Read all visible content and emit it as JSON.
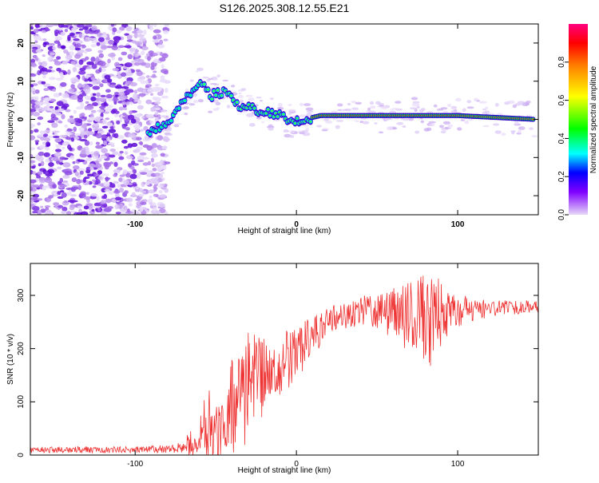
{
  "chart_data": [
    {
      "type": "heatmap",
      "title": "S126.2025.308.12.55.E21",
      "xlabel": "Height of straight line (km)",
      "ylabel": "Frequency (Hz)",
      "xlim": [
        -165,
        150
      ],
      "ylim": [
        -25,
        25
      ],
      "x_ticks": [
        {
          "value": -100,
          "label": "-100"
        },
        {
          "value": 0,
          "label": "0"
        },
        {
          "value": 100,
          "label": "100"
        }
      ],
      "y_ticks": [
        {
          "value": -20,
          "label": "-20"
        },
        {
          "value": -10,
          "label": "-10"
        },
        {
          "value": 0,
          "label": "0"
        },
        {
          "value": 10,
          "label": "10"
        },
        {
          "value": 20,
          "label": "20"
        }
      ],
      "ridge": [
        {
          "x": -90,
          "y": -3
        },
        {
          "x": -80,
          "y": -1
        },
        {
          "x": -70,
          "y": 5
        },
        {
          "x": -63,
          "y": 8
        },
        {
          "x": -57,
          "y": 10
        },
        {
          "x": -54,
          "y": 6
        },
        {
          "x": -48,
          "y": 7
        },
        {
          "x": -42,
          "y": 7
        },
        {
          "x": -38,
          "y": 4
        },
        {
          "x": -30,
          "y": 3
        },
        {
          "x": -20,
          "y": 2
        },
        {
          "x": -10,
          "y": 1
        },
        {
          "x": -3,
          "y": -1
        },
        {
          "x": 5,
          "y": 0
        },
        {
          "x": 15,
          "y": 1
        },
        {
          "x": 60,
          "y": 1
        },
        {
          "x": 100,
          "y": 1
        },
        {
          "x": 148,
          "y": 0
        }
      ],
      "colorbar": {
        "label": "Normalized spectral amplitude",
        "range": [
          0,
          1
        ],
        "ticks": [
          {
            "value": 0.0,
            "label": "0.0"
          },
          {
            "value": 0.2,
            "label": "0.2"
          },
          {
            "value": 0.4,
            "label": "0.4"
          },
          {
            "value": 0.6,
            "label": "0.6"
          },
          {
            "value": 0.8,
            "label": "0.8"
          }
        ]
      }
    },
    {
      "type": "line",
      "xlabel": "Height of straight line (km)",
      "ylabel": "SNR (10 * v/v)",
      "xlim": [
        -165,
        150
      ],
      "ylim": [
        0,
        360
      ],
      "color": "#ee3333",
      "x_ticks": [
        {
          "value": -100,
          "label": "-100"
        },
        {
          "value": 0,
          "label": "0"
        },
        {
          "value": 100,
          "label": "100"
        }
      ],
      "y_ticks": [
        {
          "value": 0,
          "label": "0"
        },
        {
          "value": 100,
          "label": "100"
        },
        {
          "value": 200,
          "label": "200"
        },
        {
          "value": 300,
          "label": "300"
        }
      ],
      "envelope": [
        {
          "x": -165,
          "base": 10,
          "amp": 6
        },
        {
          "x": -100,
          "base": 10,
          "amp": 6
        },
        {
          "x": -75,
          "base": 12,
          "amp": 8
        },
        {
          "x": -62,
          "base": 25,
          "amp": 30
        },
        {
          "x": -55,
          "base": 60,
          "amp": 70
        },
        {
          "x": -45,
          "base": 40,
          "amp": 50
        },
        {
          "x": -40,
          "base": 90,
          "amp": 90
        },
        {
          "x": -30,
          "base": 120,
          "amp": 110
        },
        {
          "x": -20,
          "base": 150,
          "amp": 70
        },
        {
          "x": -5,
          "base": 180,
          "amp": 55
        },
        {
          "x": 10,
          "base": 220,
          "amp": 40
        },
        {
          "x": 25,
          "base": 260,
          "amp": 25
        },
        {
          "x": 40,
          "base": 270,
          "amp": 30
        },
        {
          "x": 60,
          "base": 265,
          "amp": 50
        },
        {
          "x": 75,
          "base": 255,
          "amp": 80
        },
        {
          "x": 85,
          "base": 255,
          "amp": 95
        },
        {
          "x": 95,
          "base": 270,
          "amp": 35
        },
        {
          "x": 120,
          "base": 275,
          "amp": 15
        },
        {
          "x": 150,
          "base": 280,
          "amp": 12
        }
      ]
    }
  ]
}
